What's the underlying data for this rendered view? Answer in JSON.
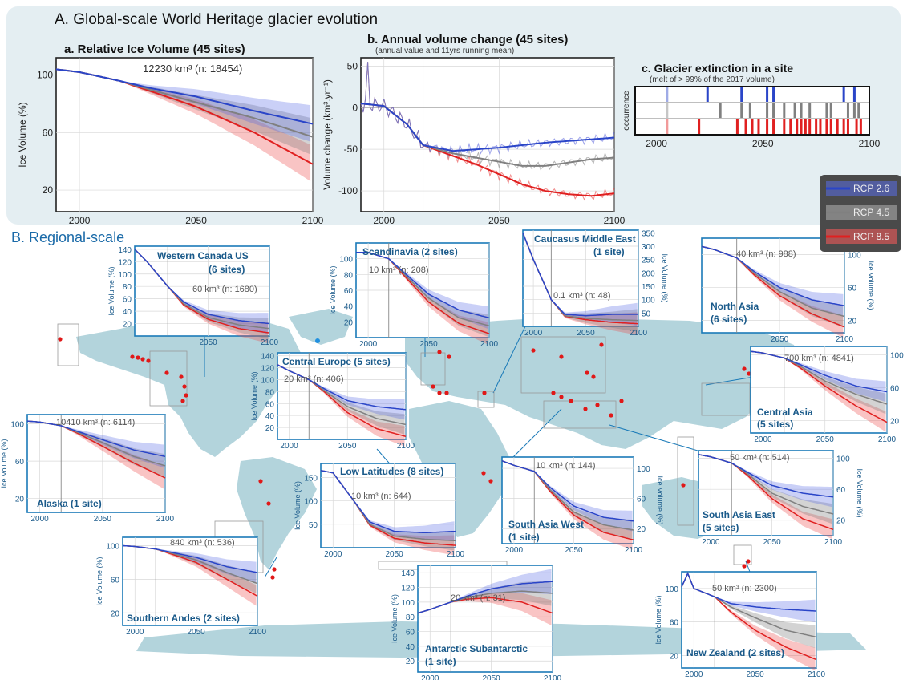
{
  "section_a": {
    "title": "A. Global-scale World Heritage glacier evolution",
    "legend": [
      {
        "label": "RCP 2.6",
        "color": "#2a45c8"
      },
      {
        "label": "RCP 4.5",
        "color": "#808080"
      },
      {
        "label": "RCP 8.5",
        "color": "#e02020"
      }
    ]
  },
  "section_b": {
    "title": "B. Regional-scale"
  },
  "colors": {
    "rcp26": "#2a45c8",
    "rcp45": "#808080",
    "rcp85": "#e02020",
    "panel_border": "#1a7ab8",
    "label": "#1a5a8a",
    "map": "#b3d4dc",
    "section_bg": "#e4eef2"
  },
  "chart_data": [
    {
      "id": "global-a",
      "type": "line",
      "title": "a. Relative Ice Volume (45 sites)",
      "annotation": "12230 km³ (n: 18454)",
      "ylabel": "Ice Volume (%)",
      "xlabel": "",
      "xlim": [
        1990,
        2100
      ],
      "ylim": [
        5,
        112
      ],
      "yticks": [
        20,
        60,
        100
      ],
      "xticks": [
        2000,
        2050,
        2100
      ],
      "x": [
        1990,
        2000,
        2017,
        2030,
        2050,
        2075,
        2100
      ],
      "series": [
        {
          "name": "RCP 2.6",
          "values": [
            104,
            102,
            96,
            91,
            85,
            75,
            66
          ]
        },
        {
          "name": "RCP 4.5",
          "values": [
            104,
            102,
            96,
            90,
            81,
            70,
            57
          ]
        },
        {
          "name": "RCP 8.5",
          "values": [
            104,
            102,
            96,
            89,
            78,
            60,
            38
          ]
        }
      ],
      "grid": true
    },
    {
      "id": "global-b",
      "type": "line",
      "title": "b. Annual volume change (45 sites)",
      "subtitle": "(annual value and 11yrs running mean)",
      "ylabel": "Volume change (km³.yr⁻¹)",
      "xlabel": "",
      "xlim": [
        1990,
        2100
      ],
      "ylim": [
        -125,
        60
      ],
      "yticks": [
        -100,
        -50,
        0,
        50
      ],
      "xticks": [
        2000,
        2050,
        2100
      ],
      "x": [
        1990,
        2000,
        2010,
        2017,
        2030,
        2040,
        2050,
        2060,
        2070,
        2080,
        2090,
        2100
      ],
      "series": [
        {
          "name": "RCP 2.6",
          "values": [
            5,
            2,
            -20,
            -45,
            -52,
            -50,
            -48,
            -45,
            -42,
            -40,
            -38,
            -36
          ]
        },
        {
          "name": "RCP 4.5",
          "values": [
            5,
            2,
            -20,
            -45,
            -55,
            -60,
            -65,
            -70,
            -70,
            -66,
            -62,
            -60
          ]
        },
        {
          "name": "RCP 8.5",
          "values": [
            5,
            2,
            -20,
            -45,
            -58,
            -68,
            -80,
            -92,
            -100,
            -104,
            -106,
            -103
          ]
        }
      ],
      "grid": true
    },
    {
      "id": "global-c",
      "type": "scatter",
      "title": "c. Glacier extinction in a site",
      "subtitle": "(melt of > 99% of the 2017 volume)",
      "ylabel": "occurrence",
      "xlabel": "",
      "xlim": [
        1990,
        2100
      ],
      "xticks": [
        2000,
        2050,
        2100
      ],
      "series": [
        {
          "name": "RCP 2.6",
          "values": [
            2005,
            2024,
            2040,
            2052,
            2055,
            2088,
            2093
          ]
        },
        {
          "name": "RCP 4.5",
          "values": [
            2005,
            2030,
            2040,
            2044,
            2052,
            2055,
            2060,
            2065,
            2068,
            2072,
            2080,
            2082,
            2090,
            2093,
            2095
          ]
        },
        {
          "name": "RCP 8.5",
          "values": [
            2005,
            2020,
            2038,
            2042,
            2045,
            2048,
            2052,
            2055,
            2060,
            2063,
            2066,
            2068,
            2070,
            2072,
            2075,
            2077,
            2080,
            2082,
            2085,
            2088,
            2090,
            2094,
            2096
          ]
        }
      ]
    },
    {
      "id": "western-canada",
      "type": "line",
      "title": "Western Canada US (6 sites)",
      "annotation": "60 km³ (n: 1680)",
      "ylabel": "Ice Volume (%)",
      "xlim": [
        1990,
        2100
      ],
      "ylim": [
        0,
        145
      ],
      "yticks": [
        20,
        40,
        60,
        80,
        100,
        120,
        140
      ],
      "xticks": [
        2050,
        2100
      ],
      "x": [
        1990,
        2000,
        2017,
        2030,
        2050,
        2075,
        2100
      ],
      "series": [
        {
          "name": "RCP 2.6",
          "values": [
            140,
            120,
            80,
            55,
            35,
            25,
            20
          ]
        },
        {
          "name": "RCP 4.5",
          "values": [
            140,
            120,
            80,
            52,
            30,
            18,
            12
          ]
        },
        {
          "name": "RCP 8.5",
          "values": [
            140,
            120,
            80,
            50,
            27,
            12,
            5
          ]
        }
      ]
    },
    {
      "id": "scandinavia",
      "type": "line",
      "title": "Scandinavia (2 sites)",
      "annotation": "10 km³ (n: 208)",
      "ylabel": "Ice Volume (%)",
      "xlim": [
        1990,
        2100
      ],
      "ylim": [
        0,
        120
      ],
      "yticks": [
        20,
        40,
        60,
        80,
        100
      ],
      "xticks": [
        2000,
        2050,
        2100
      ],
      "x": [
        1990,
        2000,
        2017,
        2030,
        2050,
        2075,
        2100
      ],
      "series": [
        {
          "name": "RCP 2.6",
          "values": [
            108,
            108,
            100,
            82,
            55,
            35,
            25
          ]
        },
        {
          "name": "RCP 4.5",
          "values": [
            108,
            108,
            100,
            80,
            50,
            25,
            15
          ]
        },
        {
          "name": "RCP 8.5",
          "values": [
            108,
            108,
            100,
            78,
            45,
            18,
            5
          ]
        }
      ]
    },
    {
      "id": "caucasus",
      "type": "line",
      "title": "Caucasus Middle East (1 site)",
      "annotation": "0.1 km³ (n: 48)",
      "ylabel": "Ice Volume (%)",
      "xlim": [
        1990,
        2100
      ],
      "ylim": [
        0,
        360
      ],
      "yticks": [
        50,
        100,
        150,
        200,
        250,
        300,
        350
      ],
      "xticks": [
        2000,
        2050,
        2100
      ],
      "x": [
        1990,
        2000,
        2017,
        2030,
        2050,
        2075,
        2100
      ],
      "series": [
        {
          "name": "RCP 2.6",
          "values": [
            350,
            250,
            100,
            45,
            40,
            45,
            45
          ]
        },
        {
          "name": "RCP 4.5",
          "values": [
            350,
            250,
            100,
            40,
            30,
            25,
            22
          ]
        },
        {
          "name": "RCP 8.5",
          "values": [
            350,
            250,
            100,
            38,
            25,
            15,
            10
          ]
        }
      ]
    },
    {
      "id": "north-asia",
      "type": "line",
      "title": "North Asia (6 sites)",
      "annotation": "40 km³ (n: 988)",
      "ylabel": "Ice Volume (%)",
      "xlim": [
        1990,
        2100
      ],
      "ylim": [
        5,
        120
      ],
      "yticks": [
        20,
        60,
        100
      ],
      "xticks": [
        2050,
        2100
      ],
      "x": [
        1990,
        2000,
        2017,
        2030,
        2050,
        2075,
        2100
      ],
      "series": [
        {
          "name": "RCP 2.6",
          "values": [
            110,
            106,
            96,
            80,
            60,
            45,
            38
          ]
        },
        {
          "name": "RCP 4.5",
          "values": [
            110,
            106,
            96,
            78,
            55,
            35,
            25
          ]
        },
        {
          "name": "RCP 8.5",
          "values": [
            110,
            106,
            96,
            76,
            50,
            28,
            12
          ]
        }
      ]
    },
    {
      "id": "central-europe",
      "type": "line",
      "title": "Central Europe (5 sites)",
      "annotation": "20 km³ (n: 406)",
      "ylabel": "Ice Volume (%)",
      "xlim": [
        1990,
        2100
      ],
      "ylim": [
        0,
        145
      ],
      "yticks": [
        20,
        40,
        60,
        80,
        100,
        120,
        140
      ],
      "xticks": [
        2000,
        2050,
        2100
      ],
      "x": [
        1990,
        2000,
        2017,
        2030,
        2050,
        2075,
        2100
      ],
      "series": [
        {
          "name": "RCP 2.6",
          "values": [
            125,
            115,
            100,
            85,
            65,
            55,
            50
          ]
        },
        {
          "name": "RCP 4.5",
          "values": [
            125,
            115,
            100,
            82,
            55,
            35,
            25
          ]
        },
        {
          "name": "RCP 8.5",
          "values": [
            125,
            115,
            100,
            80,
            45,
            18,
            5
          ]
        }
      ]
    },
    {
      "id": "central-asia",
      "type": "line",
      "title": "Central Asia (5 sites)",
      "annotation": "700 km³ (n: 4841)",
      "ylabel": "Ice Volume (%)",
      "xlim": [
        1990,
        2100
      ],
      "ylim": [
        5,
        110
      ],
      "yticks": [
        20,
        60,
        100
      ],
      "xticks": [
        2000,
        2050,
        2100
      ],
      "x": [
        1990,
        2000,
        2017,
        2030,
        2050,
        2075,
        2100
      ],
      "series": [
        {
          "name": "RCP 2.6",
          "values": [
            104,
            102,
            96,
            88,
            75,
            62,
            55
          ]
        },
        {
          "name": "RCP 4.5",
          "values": [
            104,
            102,
            96,
            86,
            68,
            52,
            40
          ]
        },
        {
          "name": "RCP 8.5",
          "values": [
            104,
            102,
            96,
            84,
            62,
            38,
            18
          ]
        }
      ]
    },
    {
      "id": "alaska",
      "type": "line",
      "title": "Alaska (1 site)",
      "annotation": "10410 km³ (n: 6114)",
      "ylabel": "Ice Volume (%)",
      "xlim": [
        1990,
        2100
      ],
      "ylim": [
        5,
        110
      ],
      "yticks": [
        20,
        60,
        100
      ],
      "xticks": [
        2000,
        2050,
        2100
      ],
      "x": [
        1990,
        2000,
        2017,
        2030,
        2050,
        2075,
        2100
      ],
      "series": [
        {
          "name": "RCP 2.6",
          "values": [
            103,
            102,
            98,
            92,
            83,
            72,
            65
          ]
        },
        {
          "name": "RCP 4.5",
          "values": [
            103,
            102,
            98,
            91,
            80,
            65,
            55
          ]
        },
        {
          "name": "RCP 8.5",
          "values": [
            103,
            102,
            98,
            90,
            76,
            58,
            42
          ]
        }
      ]
    },
    {
      "id": "low-latitudes",
      "type": "line",
      "title": "Low Latitudes (8 sites)",
      "annotation": "10 km³ (n: 644)",
      "ylabel": "Ice Volume (%)",
      "xlim": [
        1990,
        2100
      ],
      "ylim": [
        0,
        180
      ],
      "yticks": [
        50,
        100,
        150
      ],
      "xticks": [
        2000,
        2050,
        2100
      ],
      "x": [
        1990,
        2000,
        2017,
        2030,
        2050,
        2075,
        2100
      ],
      "series": [
        {
          "name": "RCP 2.6",
          "values": [
            165,
            160,
            100,
            55,
            35,
            32,
            35
          ]
        },
        {
          "name": "RCP 4.5",
          "values": [
            165,
            160,
            100,
            50,
            25,
            18,
            15
          ]
        },
        {
          "name": "RCP 8.5",
          "values": [
            165,
            160,
            100,
            48,
            20,
            10,
            5
          ]
        }
      ]
    },
    {
      "id": "south-asia-west",
      "type": "line",
      "title": "South Asia West (1 site)",
      "annotation": "10 km³ (n: 144)",
      "ylabel": "Ice Volume (%)",
      "xlim": [
        1990,
        2100
      ],
      "ylim": [
        0,
        115
      ],
      "yticks": [
        20,
        60,
        100
      ],
      "xticks": [
        2000,
        2050,
        2100
      ],
      "x": [
        1990,
        2000,
        2017,
        2030,
        2050,
        2075,
        2100
      ],
      "series": [
        {
          "name": "RCP 2.6",
          "values": [
            110,
            104,
            96,
            75,
            50,
            35,
            30
          ]
        },
        {
          "name": "RCP 4.5",
          "values": [
            110,
            104,
            96,
            72,
            42,
            25,
            18
          ]
        },
        {
          "name": "RCP 8.5",
          "values": [
            110,
            104,
            96,
            70,
            38,
            15,
            5
          ]
        }
      ]
    },
    {
      "id": "south-asia-east",
      "type": "line",
      "title": "South Asia East (5 sites)",
      "annotation": "50 km³ (n: 514)",
      "ylabel": "Ice Volume (%)",
      "xlim": [
        1990,
        2100
      ],
      "ylim": [
        0,
        110
      ],
      "yticks": [
        20,
        60,
        100
      ],
      "xticks": [
        2000,
        2050,
        2100
      ],
      "x": [
        1990,
        2000,
        2017,
        2030,
        2050,
        2075,
        2100
      ],
      "series": [
        {
          "name": "RCP 2.6",
          "values": [
            105,
            102,
            94,
            82,
            65,
            55,
            50
          ]
        },
        {
          "name": "RCP 4.5",
          "values": [
            105,
            102,
            94,
            80,
            55,
            38,
            28
          ]
        },
        {
          "name": "RCP 8.5",
          "values": [
            105,
            102,
            94,
            78,
            48,
            22,
            8
          ]
        }
      ]
    },
    {
      "id": "southern-andes",
      "type": "line",
      "title": "Southern Andes (2 sites)",
      "annotation": "840 km³ (n: 536)",
      "ylabel": "Ice Volume (%)",
      "xlim": [
        1990,
        2100
      ],
      "ylim": [
        5,
        110
      ],
      "yticks": [
        20,
        60,
        100
      ],
      "xticks": [
        2000,
        2050,
        2100
      ],
      "x": [
        1990,
        2000,
        2017,
        2030,
        2050,
        2075,
        2100
      ],
      "series": [
        {
          "name": "RCP 2.6",
          "values": [
            100,
            99,
            96,
            92,
            86,
            75,
            68
          ]
        },
        {
          "name": "RCP 4.5",
          "values": [
            100,
            99,
            96,
            91,
            83,
            68,
            55
          ]
        },
        {
          "name": "RCP 8.5",
          "values": [
            100,
            99,
            96,
            90,
            80,
            60,
            40
          ]
        }
      ]
    },
    {
      "id": "antarctic",
      "type": "line",
      "title": "Antarctic Subantarctic (1 site)",
      "annotation": "20 km³ (n: 31)",
      "ylabel": "Ice Volume (%)",
      "xlim": [
        1990,
        2100
      ],
      "ylim": [
        5,
        150
      ],
      "yticks": [
        20,
        40,
        60,
        80,
        100,
        120,
        140
      ],
      "xticks": [
        2000,
        2050,
        2100
      ],
      "x": [
        1990,
        2000,
        2017,
        2030,
        2050,
        2075,
        2100
      ],
      "series": [
        {
          "name": "RCP 2.6",
          "values": [
            85,
            90,
            100,
            108,
            118,
            125,
            128
          ]
        },
        {
          "name": "RCP 4.5",
          "values": [
            85,
            90,
            100,
            106,
            112,
            115,
            112
          ]
        },
        {
          "name": "RCP 8.5",
          "values": [
            85,
            90,
            100,
            104,
            106,
            100,
            85
          ]
        }
      ]
    },
    {
      "id": "new-zealand",
      "type": "line",
      "title": "New Zealand (2 sites)",
      "annotation": "50 km³ (n: 2300)",
      "ylabel": "Ice Volume (%)",
      "xlim": [
        1990,
        2100
      ],
      "ylim": [
        5,
        120
      ],
      "yticks": [
        20,
        60,
        100
      ],
      "xticks": [
        2000,
        2050,
        2100
      ],
      "x": [
        1990,
        1995,
        2000,
        2017,
        2030,
        2050,
        2075,
        2100
      ],
      "series": [
        {
          "name": "RCP 2.6",
          "values": [
            102,
            118,
            100,
            90,
            82,
            78,
            75,
            73
          ]
        },
        {
          "name": "RCP 4.5",
          "values": [
            102,
            118,
            100,
            90,
            78,
            65,
            50,
            42
          ]
        },
        {
          "name": "RCP 8.5",
          "values": [
            102,
            118,
            100,
            90,
            72,
            50,
            30,
            15
          ]
        }
      ]
    }
  ]
}
